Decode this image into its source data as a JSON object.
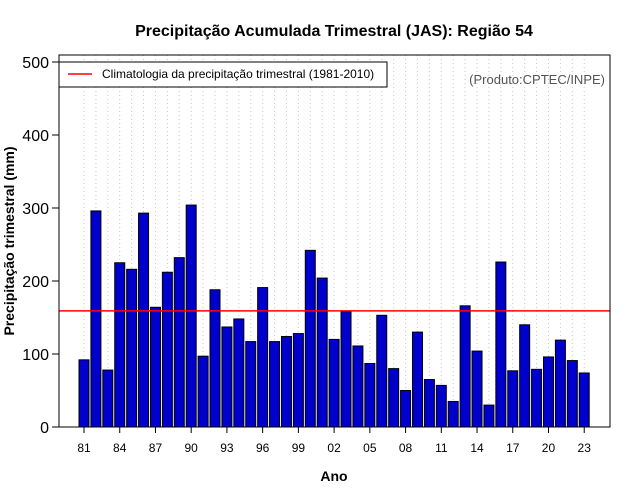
{
  "chart_data": {
    "type": "bar",
    "title": "Precipitação Acumulada Trimestral (JAS): Região 54",
    "xlabel": "Ano",
    "ylabel": "Precipitação trimestral (mm)",
    "ylim": [
      0,
      500
    ],
    "yticks": [
      0,
      100,
      200,
      300,
      400,
      500
    ],
    "categories": [
      "81",
      "82",
      "83",
      "84",
      "85",
      "86",
      "87",
      "88",
      "89",
      "90",
      "91",
      "92",
      "93",
      "94",
      "95",
      "96",
      "97",
      "98",
      "99",
      "00",
      "01",
      "02",
      "03",
      "04",
      "05",
      "06",
      "07",
      "08",
      "09",
      "10",
      "11",
      "12",
      "13",
      "14",
      "15",
      "16",
      "17",
      "18",
      "19",
      "20",
      "21",
      "22",
      "23"
    ],
    "xtick_labels": [
      "81",
      "84",
      "87",
      "90",
      "93",
      "96",
      "99",
      "02",
      "05",
      "08",
      "11",
      "14",
      "17",
      "20",
      "23"
    ],
    "values": [
      92,
      296,
      78,
      225,
      216,
      293,
      164,
      212,
      232,
      304,
      97,
      188,
      137,
      148,
      117,
      191,
      117,
      124,
      128,
      242,
      204,
      120,
      158,
      111,
      87,
      153,
      80,
      50,
      130,
      65,
      57,
      35,
      166,
      104,
      30,
      226,
      77,
      140,
      79,
      96,
      119,
      91,
      74
    ],
    "bar_color": "#0000CD",
    "climatology": {
      "value": 159,
      "color": "#FF0000",
      "label": "Climatologia da precipitação trimestral (1981-2010)"
    },
    "grid": "vertical dotted",
    "legend_position": "top-left",
    "credit": "(Produto:CPTEC/INPE)"
  }
}
